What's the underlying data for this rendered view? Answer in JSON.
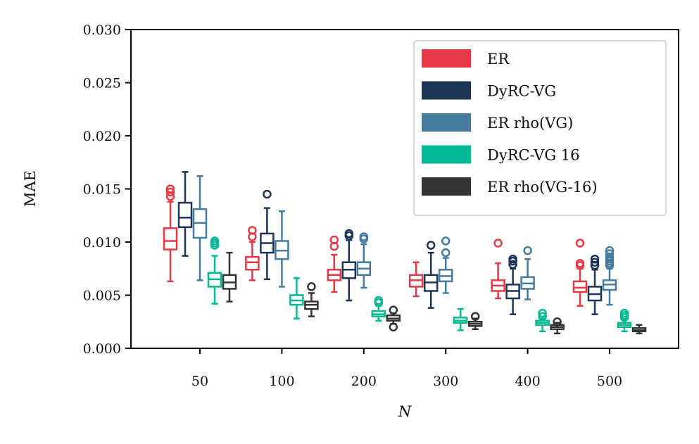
{
  "chart_data": {
    "type": "box",
    "xlabel": "N",
    "ylabel": "MAE",
    "ylim": [
      0,
      0.03
    ],
    "yticks": [
      "0.000",
      "0.005",
      "0.010",
      "0.015",
      "0.020",
      "0.025",
      "0.030"
    ],
    "categories": [
      "50",
      "100",
      "200",
      "300",
      "400",
      "500"
    ],
    "legend_position": "top-right",
    "series": [
      {
        "name": "ER",
        "color": "#e63946",
        "boxes": [
          {
            "whislo": 0.0063,
            "q1": 0.0093,
            "med": 0.0101,
            "q3": 0.0113,
            "whishi": 0.0138,
            "fliers": [
              0.0143,
              0.0147,
              0.015
            ]
          },
          {
            "whislo": 0.0064,
            "q1": 0.0074,
            "med": 0.0081,
            "q3": 0.0086,
            "whishi": 0.01,
            "fliers": [
              0.0105,
              0.0111
            ]
          },
          {
            "whislo": 0.0053,
            "q1": 0.0064,
            "med": 0.0069,
            "q3": 0.0074,
            "whishi": 0.0088,
            "fliers": [
              0.0096,
              0.0102
            ]
          },
          {
            "whislo": 0.0049,
            "q1": 0.0058,
            "med": 0.0064,
            "q3": 0.0069,
            "whishi": 0.0081,
            "fliers": []
          },
          {
            "whislo": 0.0047,
            "q1": 0.0054,
            "med": 0.0059,
            "q3": 0.0064,
            "whishi": 0.008,
            "fliers": [
              0.0099
            ]
          },
          {
            "whislo": 0.004,
            "q1": 0.0053,
            "med": 0.0057,
            "q3": 0.0063,
            "whishi": 0.0075,
            "fliers": [
              0.0078,
              0.008,
              0.0099
            ]
          }
        ]
      },
      {
        "name": "DyRC-VG",
        "color": "#1d3557",
        "boxes": [
          {
            "whislo": 0.0087,
            "q1": 0.0114,
            "med": 0.0123,
            "q3": 0.0137,
            "whishi": 0.0166,
            "fliers": []
          },
          {
            "whislo": 0.0065,
            "q1": 0.009,
            "med": 0.0099,
            "q3": 0.0108,
            "whishi": 0.0132,
            "fliers": [
              0.0145
            ]
          },
          {
            "whislo": 0.0045,
            "q1": 0.0066,
            "med": 0.0074,
            "q3": 0.0081,
            "whishi": 0.0102,
            "fliers": [
              0.0106,
              0.0108
            ]
          },
          {
            "whislo": 0.0038,
            "q1": 0.0054,
            "med": 0.0062,
            "q3": 0.0069,
            "whishi": 0.009,
            "fliers": [
              0.0097
            ]
          },
          {
            "whislo": 0.0032,
            "q1": 0.0047,
            "med": 0.0054,
            "q3": 0.006,
            "whishi": 0.0075,
            "fliers": [
              0.0079,
              0.0082,
              0.0084
            ]
          },
          {
            "whislo": 0.0032,
            "q1": 0.0045,
            "med": 0.0051,
            "q3": 0.0058,
            "whishi": 0.0074,
            "fliers": [
              0.0078,
              0.0081,
              0.0084
            ]
          }
        ]
      },
      {
        "name": "ER rho(VG)",
        "color": "#457b9d",
        "boxes": [
          {
            "whislo": 0.0064,
            "q1": 0.0104,
            "med": 0.0118,
            "q3": 0.0131,
            "whishi": 0.0162,
            "fliers": []
          },
          {
            "whislo": 0.0058,
            "q1": 0.0084,
            "med": 0.0092,
            "q3": 0.0101,
            "whishi": 0.0129,
            "fliers": []
          },
          {
            "whislo": 0.0057,
            "q1": 0.0069,
            "med": 0.0075,
            "q3": 0.0081,
            "whishi": 0.0098,
            "fliers": [
              0.0103,
              0.0105
            ]
          },
          {
            "whislo": 0.0052,
            "q1": 0.0063,
            "med": 0.0068,
            "q3": 0.0074,
            "whishi": 0.0085,
            "fliers": [
              0.009,
              0.0101
            ]
          },
          {
            "whislo": 0.0046,
            "q1": 0.0056,
            "med": 0.0061,
            "q3": 0.0067,
            "whishi": 0.0084,
            "fliers": [
              0.0092
            ]
          },
          {
            "whislo": 0.0041,
            "q1": 0.0055,
            "med": 0.006,
            "q3": 0.0064,
            "whishi": 0.0075,
            "fliers": [
              0.0078,
              0.008,
              0.0082,
              0.0084,
              0.0086,
              0.0089,
              0.0092
            ]
          }
        ]
      },
      {
        "name": "DyRC-VG 16",
        "color": "#00b894",
        "boxes": [
          {
            "whislo": 0.0042,
            "q1": 0.0058,
            "med": 0.0065,
            "q3": 0.0071,
            "whishi": 0.0087,
            "fliers": [
              0.0097,
              0.0099,
              0.0101
            ]
          },
          {
            "whislo": 0.0028,
            "q1": 0.0041,
            "med": 0.0045,
            "q3": 0.005,
            "whishi": 0.0066,
            "fliers": []
          },
          {
            "whislo": 0.0026,
            "q1": 0.003,
            "med": 0.0032,
            "q3": 0.0035,
            "whishi": 0.004,
            "fliers": [
              0.0043,
              0.0045
            ]
          },
          {
            "whislo": 0.0017,
            "q1": 0.0024,
            "med": 0.0026,
            "q3": 0.0029,
            "whishi": 0.0037,
            "fliers": []
          },
          {
            "whislo": 0.0016,
            "q1": 0.0022,
            "med": 0.0024,
            "q3": 0.0026,
            "whishi": 0.0028,
            "fliers": [
              0.003,
              0.0033
            ]
          },
          {
            "whislo": 0.0016,
            "q1": 0.002,
            "med": 0.0022,
            "q3": 0.0024,
            "whishi": 0.0027,
            "fliers": [
              0.0029,
              0.0031,
              0.0033
            ]
          }
        ]
      },
      {
        "name": "ER rho(VG-16)",
        "color": "#333333",
        "boxes": [
          {
            "whislo": 0.0044,
            "q1": 0.0056,
            "med": 0.0062,
            "q3": 0.0069,
            "whishi": 0.009,
            "fliers": []
          },
          {
            "whislo": 0.003,
            "q1": 0.0037,
            "med": 0.0041,
            "q3": 0.0044,
            "whishi": 0.0052,
            "fliers": [
              0.0058
            ]
          },
          {
            "whislo": 0.0023,
            "q1": 0.0026,
            "med": 0.0028,
            "q3": 0.0031,
            "whishi": 0.0033,
            "fliers": [
              0.002,
              0.0036
            ]
          },
          {
            "whislo": 0.0018,
            "q1": 0.0021,
            "med": 0.0023,
            "q3": 0.0025,
            "whishi": 0.0028,
            "fliers": [
              0.003
            ]
          },
          {
            "whislo": 0.0014,
            "q1": 0.0018,
            "med": 0.002,
            "q3": 0.0022,
            "whishi": 0.0024,
            "fliers": [
              0.0025
            ]
          },
          {
            "whislo": 0.0014,
            "q1": 0.0016,
            "med": 0.0017,
            "q3": 0.0019,
            "whishi": 0.0022,
            "fliers": []
          }
        ]
      }
    ]
  }
}
